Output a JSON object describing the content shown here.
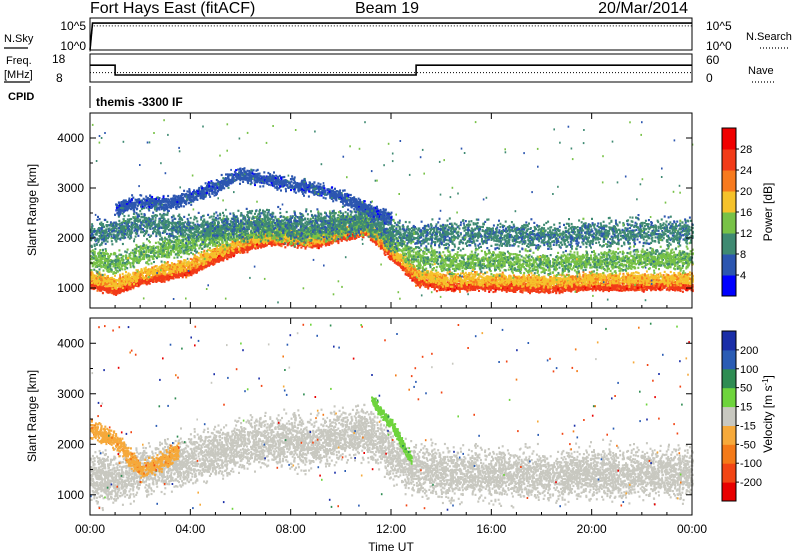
{
  "header": {
    "station": "Fort Hays East (fitACF)",
    "beam": "Beam 19",
    "date": "20/Mar/2014"
  },
  "summary": {
    "nsky_label": "N.Sky",
    "nsearch_label": "N.Search",
    "freq_label_1": "Freq.",
    "freq_label_2": "[MHz]",
    "nave_label": "Nave",
    "cpid_label": "CPID",
    "cpid_text": "themis -3300 IF",
    "noise_left_ticks": [
      "10^5",
      "10^0"
    ],
    "noise_right_ticks": [
      "10^5",
      "10^0"
    ],
    "freq_ticks": [
      "18",
      "8"
    ],
    "nave_ticks": [
      "60",
      "0"
    ]
  },
  "power_colorbar": {
    "label": "Power [dB]",
    "ticks": [
      "4",
      "8",
      "12",
      "16",
      "20",
      "24",
      "28"
    ],
    "colors": [
      "#0000ff",
      "#2c56b0",
      "#3f8a72",
      "#78c247",
      "#f5c22b",
      "#f77a1e",
      "#f23b18",
      "#f00000"
    ]
  },
  "velocity_colorbar": {
    "label": "Velocity [m s",
    "label_sup": "-1",
    "label_end": "]",
    "ticks": [
      "-200",
      "-100",
      "-50",
      "-15",
      "15",
      "50",
      "100",
      "200"
    ],
    "colors": [
      "#e80000",
      "#f24514",
      "#f47a18",
      "#f6a93a",
      "#c8c8c0",
      "#6ed43c",
      "#2e8c52",
      "#2a5cb4",
      "#1a2ea8"
    ]
  },
  "chart_data": [
    {
      "type": "line",
      "panel": "noise-and-search",
      "x_unit": "hours UT",
      "series": [
        {
          "name": "N.Sky",
          "x": [
            0,
            0.1,
            24
          ],
          "y": [
            0,
            4.2,
            4.2
          ]
        },
        {
          "name": "N.Search",
          "x": [
            0,
            0.1,
            24
          ],
          "y": [
            0,
            4.0,
            4.0
          ]
        }
      ]
    },
    {
      "type": "line",
      "panel": "frequency-and-nave",
      "x_unit": "hours UT",
      "series": [
        {
          "name": "Freq.",
          "x": [
            0,
            1.0,
            1.0,
            13.0,
            13.0,
            24
          ],
          "y": [
            14,
            14,
            10.5,
            10.5,
            14,
            14
          ]
        },
        {
          "name": "Nave",
          "x": [
            0,
            24
          ],
          "y": [
            20,
            20
          ]
        }
      ]
    },
    {
      "type": "heatmap",
      "panel": "power",
      "xlabel": "",
      "ylabel": "Slant Range [km]",
      "xlim": [
        0,
        24
      ],
      "ylim": [
        600,
        4500
      ],
      "x_ticks": [
        "00:00",
        "04:00",
        "08:00",
        "12:00",
        "16:00",
        "20:00",
        "00:00"
      ],
      "y_ticks": [
        1000,
        2000,
        3000,
        4000
      ],
      "echo_bands": [
        {
          "level": 26,
          "width": 120,
          "range": [
            [
              0,
              1100
            ],
            [
              1,
              950
            ],
            [
              2,
              1150
            ],
            [
              3,
              1250
            ],
            [
              4,
              1350
            ],
            [
              5,
              1600
            ],
            [
              6,
              1800
            ],
            [
              7,
              1950
            ],
            [
              8,
              1950
            ],
            [
              9,
              1900
            ],
            [
              10,
              2050
            ],
            [
              11,
              2150
            ],
            [
              12,
              1650
            ],
            [
              13,
              1150
            ],
            [
              14,
              1050
            ],
            [
              16,
              1050
            ],
            [
              18,
              1000
            ],
            [
              20,
              1050
            ],
            [
              22,
              1050
            ],
            [
              24,
              1050
            ]
          ]
        },
        {
          "level": 19,
          "width": 180,
          "range": [
            [
              0,
              1250
            ],
            [
              1,
              1100
            ],
            [
              2,
              1300
            ],
            [
              3,
              1400
            ],
            [
              4,
              1500
            ],
            [
              5,
              1750
            ],
            [
              6,
              1950
            ],
            [
              7,
              2050
            ],
            [
              8,
              2050
            ],
            [
              9,
              2000
            ],
            [
              10,
              2150
            ],
            [
              11,
              2250
            ],
            [
              12,
              1800
            ],
            [
              13,
              1300
            ],
            [
              14,
              1200
            ],
            [
              16,
              1200
            ],
            [
              18,
              1150
            ],
            [
              20,
              1200
            ],
            [
              22,
              1200
            ],
            [
              24,
              1200
            ]
          ]
        },
        {
          "level": 13,
          "width": 320,
          "range": [
            [
              0,
              1600
            ],
            [
              1,
              1500
            ],
            [
              2,
              1700
            ],
            [
              3,
              1800
            ],
            [
              4,
              1900
            ],
            [
              5,
              2050
            ],
            [
              6,
              2150
            ],
            [
              7,
              2200
            ],
            [
              8,
              2150
            ],
            [
              9,
              2150
            ],
            [
              10,
              2250
            ],
            [
              11,
              2350
            ],
            [
              12,
              1950
            ],
            [
              13,
              1600
            ],
            [
              14,
              1550
            ],
            [
              16,
              1550
            ],
            [
              18,
              1500
            ],
            [
              20,
              1550
            ],
            [
              22,
              1600
            ],
            [
              24,
              1600
            ]
          ]
        },
        {
          "level": 9,
          "width": 380,
          "range": [
            [
              0,
              2100
            ],
            [
              1,
              2150
            ],
            [
              2,
              2300
            ],
            [
              3,
              2250
            ],
            [
              4,
              2200
            ],
            [
              5,
              2250
            ],
            [
              6,
              2300
            ],
            [
              7,
              2350
            ],
            [
              8,
              2250
            ],
            [
              9,
              2300
            ],
            [
              10,
              2350
            ],
            [
              11,
              2400
            ],
            [
              12,
              2100
            ],
            [
              13,
              2050
            ],
            [
              14,
              2100
            ],
            [
              16,
              2100
            ],
            [
              18,
              2050
            ],
            [
              20,
              2100
            ],
            [
              22,
              2150
            ],
            [
              24,
              2150
            ]
          ]
        },
        {
          "level": 6,
          "width": 200,
          "range": [
            [
              1,
              2600
            ],
            [
              2,
              2750
            ],
            [
              3,
              2700
            ],
            [
              4,
              2850
            ],
            [
              5,
              3050
            ],
            [
              6,
              3300
            ],
            [
              7,
              3200
            ],
            [
              8,
              3100
            ],
            [
              9,
              3000
            ],
            [
              10,
              2850
            ],
            [
              11,
              2600
            ],
            [
              12,
              2400
            ]
          ]
        }
      ]
    },
    {
      "type": "heatmap",
      "panel": "velocity",
      "xlabel": "Time UT",
      "ylabel": "Slant Range [km]",
      "xlim": [
        0,
        24
      ],
      "ylim": [
        600,
        4500
      ],
      "x_ticks": [
        "00:00",
        "04:00",
        "08:00",
        "12:00",
        "16:00",
        "20:00",
        "00:00"
      ],
      "y_ticks": [
        1000,
        2000,
        3000,
        4000
      ],
      "echo_bands": [
        {
          "level": 0,
          "width": 700,
          "range": [
            [
              0,
              1400
            ],
            [
              1,
              1300
            ],
            [
              2,
              1500
            ],
            [
              3,
              1600
            ],
            [
              4,
              1700
            ],
            [
              5,
              1850
            ],
            [
              6,
              2000
            ],
            [
              7,
              2100
            ],
            [
              8,
              2100
            ],
            [
              9,
              2050
            ],
            [
              10,
              2200
            ],
            [
              11,
              2300
            ],
            [
              12,
              1800
            ],
            [
              13,
              1500
            ],
            [
              14,
              1450
            ],
            [
              16,
              1450
            ],
            [
              18,
              1400
            ],
            [
              20,
              1450
            ],
            [
              22,
              1450
            ],
            [
              24,
              1450
            ]
          ]
        },
        {
          "level": -40,
          "width": 250,
          "range": [
            [
              0,
              2300
            ],
            [
              1,
              2100
            ],
            [
              2,
              1500
            ],
            [
              3,
              1700
            ],
            [
              3.5,
              1900
            ]
          ]
        },
        {
          "level": 35,
          "width": 160,
          "range": [
            [
              11.2,
              2900
            ],
            [
              12,
              2400
            ],
            [
              12.8,
              1700
            ]
          ]
        }
      ]
    }
  ]
}
